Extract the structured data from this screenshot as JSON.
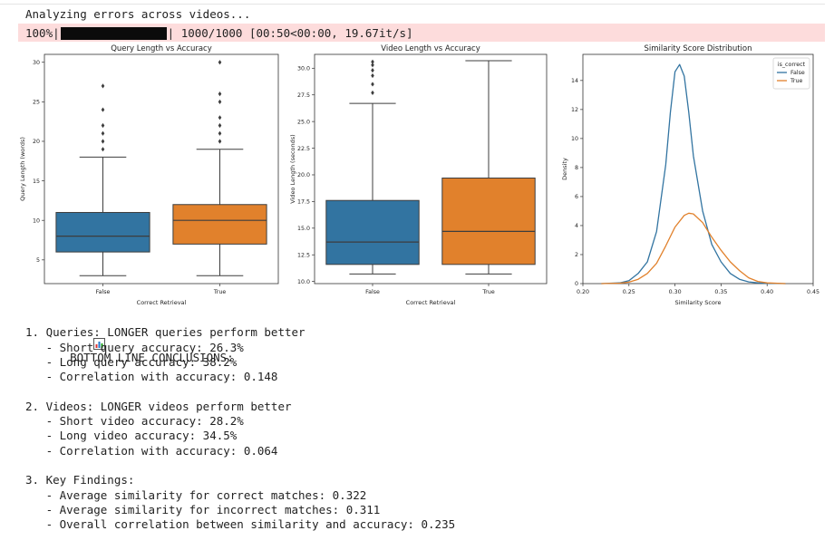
{
  "status_text": "Analyzing errors across videos...",
  "progress": {
    "percent_label": "100%|",
    "fraction": 1.0,
    "bar_end": "|",
    "stats": " 1000/1000 [00:50<00:00, 19.67it/s]"
  },
  "chart_data": [
    {
      "type": "box",
      "title": "Query Length vs Accuracy",
      "xlabel": "Correct Retrieval",
      "ylabel": "Query Length (words)",
      "ylim": [
        2,
        31
      ],
      "yticks": [
        5,
        10,
        15,
        20,
        25,
        30
      ],
      "categories": [
        "False",
        "True"
      ],
      "boxes": [
        {
          "category": "False",
          "color": "#3274a1",
          "min": 3,
          "q1": 6,
          "median": 8,
          "q3": 11,
          "max": 18,
          "outliers": [
            19,
            20,
            21,
            22,
            24,
            27
          ]
        },
        {
          "category": "True",
          "color": "#e1812c",
          "min": 3,
          "q1": 7,
          "median": 10,
          "q3": 12,
          "max": 19,
          "outliers": [
            20,
            21,
            22,
            23,
            25,
            26,
            30
          ]
        }
      ]
    },
    {
      "type": "box",
      "title": "Video Length vs Accuracy",
      "xlabel": "Correct Retrieval",
      "ylabel": "Video Length (seconds)",
      "ylim": [
        9.8,
        31.3
      ],
      "yticks": [
        10.0,
        12.5,
        15.0,
        17.5,
        20.0,
        22.5,
        25.0,
        27.5,
        30.0
      ],
      "ytick_labels": [
        "10.0",
        "12.5",
        "15.0",
        "17.5",
        "20.0",
        "22.5",
        "25.0",
        "27.5",
        "30.0"
      ],
      "categories": [
        "False",
        "True"
      ],
      "boxes": [
        {
          "category": "False",
          "color": "#3274a1",
          "min": 10.7,
          "q1": 11.6,
          "median": 13.7,
          "q3": 17.6,
          "max": 26.7,
          "outliers": [
            27.7,
            28.5,
            29.3,
            29.8,
            30.3,
            30.6
          ]
        },
        {
          "category": "True",
          "color": "#e1812c",
          "min": 10.7,
          "q1": 11.6,
          "median": 14.7,
          "q3": 19.7,
          "max": 30.7,
          "outliers": []
        }
      ]
    },
    {
      "type": "line",
      "title": "Similarity Score Distribution",
      "xlabel": "Similarity Score",
      "ylabel": "Density",
      "xlim": [
        0.2,
        0.45
      ],
      "ylim": [
        0,
        15.8
      ],
      "xticks": [
        0.2,
        0.25,
        0.3,
        0.35,
        0.4,
        0.45
      ],
      "xtick_labels": [
        "0.20",
        "0.25",
        "0.30",
        "0.35",
        "0.40",
        "0.45"
      ],
      "yticks": [
        0,
        2,
        4,
        6,
        8,
        10,
        12,
        14
      ],
      "legend": {
        "title": "is_correct",
        "position": "top-right"
      },
      "series": [
        {
          "name": "False",
          "color": "#3274a1",
          "x": [
            0.22,
            0.24,
            0.25,
            0.26,
            0.27,
            0.28,
            0.29,
            0.295,
            0.3,
            0.305,
            0.31,
            0.315,
            0.32,
            0.33,
            0.34,
            0.35,
            0.36,
            0.37,
            0.38,
            0.39,
            0.4,
            0.42
          ],
          "values": [
            0,
            0.05,
            0.2,
            0.7,
            1.5,
            3.6,
            8.2,
            11.8,
            14.6,
            15.1,
            14.3,
            11.8,
            8.8,
            5.0,
            2.7,
            1.5,
            0.7,
            0.3,
            0.12,
            0.05,
            0.02,
            0
          ]
        },
        {
          "name": "True",
          "color": "#e1812c",
          "x": [
            0.22,
            0.24,
            0.25,
            0.26,
            0.27,
            0.28,
            0.29,
            0.3,
            0.31,
            0.315,
            0.32,
            0.33,
            0.34,
            0.35,
            0.36,
            0.37,
            0.38,
            0.39,
            0.4,
            0.42
          ],
          "values": [
            0,
            0.03,
            0.1,
            0.3,
            0.7,
            1.4,
            2.6,
            3.9,
            4.7,
            4.85,
            4.8,
            4.2,
            3.2,
            2.3,
            1.5,
            0.9,
            0.4,
            0.15,
            0.05,
            0
          ]
        }
      ]
    }
  ],
  "conclusions": {
    "header": "BOTTOM LINE CONCLUSIONS:",
    "lines": [
      "1. Queries: LONGER queries perform better",
      "   - Short query accuracy: 26.3%",
      "   - Long query accuracy: 38.2%",
      "   - Correlation with accuracy: 0.148",
      "",
      "2. Videos: LONGER videos perform better",
      "   - Short video accuracy: 28.2%",
      "   - Long video accuracy: 34.5%",
      "   - Correlation with accuracy: 0.064",
      "",
      "3. Key Findings:",
      "   - Average similarity for correct matches: 0.322",
      "   - Average similarity for incorrect matches: 0.311",
      "   - Overall correlation between similarity and accuracy: 0.235"
    ]
  }
}
